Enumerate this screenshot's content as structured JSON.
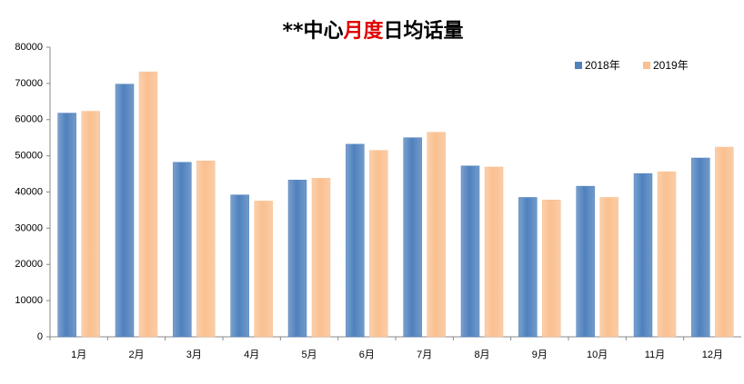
{
  "chart_data": {
    "type": "bar",
    "title_segments": [
      {
        "text": "**中心",
        "color": "#000000"
      },
      {
        "text": "月度",
        "color": "#e00000"
      },
      {
        "text": "日均话量",
        "color": "#000000"
      }
    ],
    "categories": [
      "1月",
      "2月",
      "3月",
      "4月",
      "5月",
      "6月",
      "7月",
      "8月",
      "9月",
      "10月",
      "11月",
      "12月"
    ],
    "series": [
      {
        "name": "2018年",
        "color": "#4f81bd",
        "values": [
          61800,
          69800,
          48200,
          39200,
          43300,
          53200,
          55000,
          47200,
          38500,
          41600,
          45100,
          49400
        ]
      },
      {
        "name": "2019年",
        "color": "#fac090",
        "values": [
          62300,
          73200,
          48600,
          37500,
          43800,
          51500,
          56500,
          46900,
          37800,
          38500,
          45600,
          52400
        ]
      }
    ],
    "ylim": [
      0,
      80000
    ],
    "yticks": [
      0,
      10000,
      20000,
      30000,
      40000,
      50000,
      60000,
      70000,
      80000
    ],
    "grid": false,
    "legend": "top-right"
  }
}
